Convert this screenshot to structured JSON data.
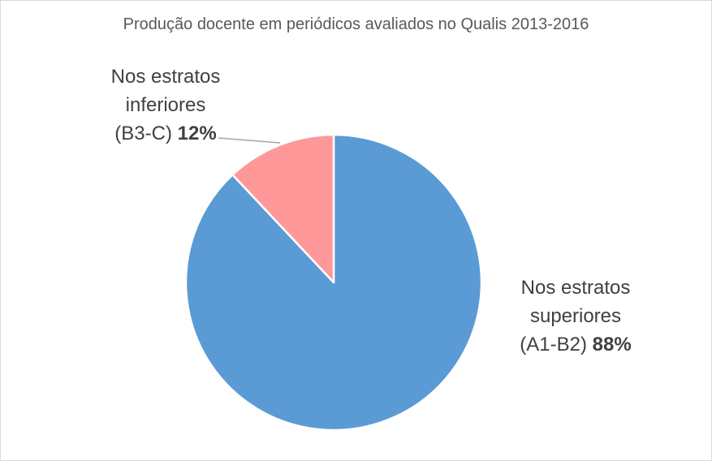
{
  "chart_data": {
    "type": "pie",
    "title": "Produção docente em periódicos avaliados no Qualis 2013-2016",
    "slices": [
      {
        "label_lines": [
          "Nos estratos",
          "superiores",
          "(A1-B2)"
        ],
        "value": 88,
        "percent_label": "88%",
        "color": "#5b9bd5"
      },
      {
        "label_lines": [
          "Nos estratos",
          "inferiores",
          "(B3-C)"
        ],
        "value": 12,
        "percent_label": "12%",
        "color": "#ff9999"
      }
    ]
  }
}
